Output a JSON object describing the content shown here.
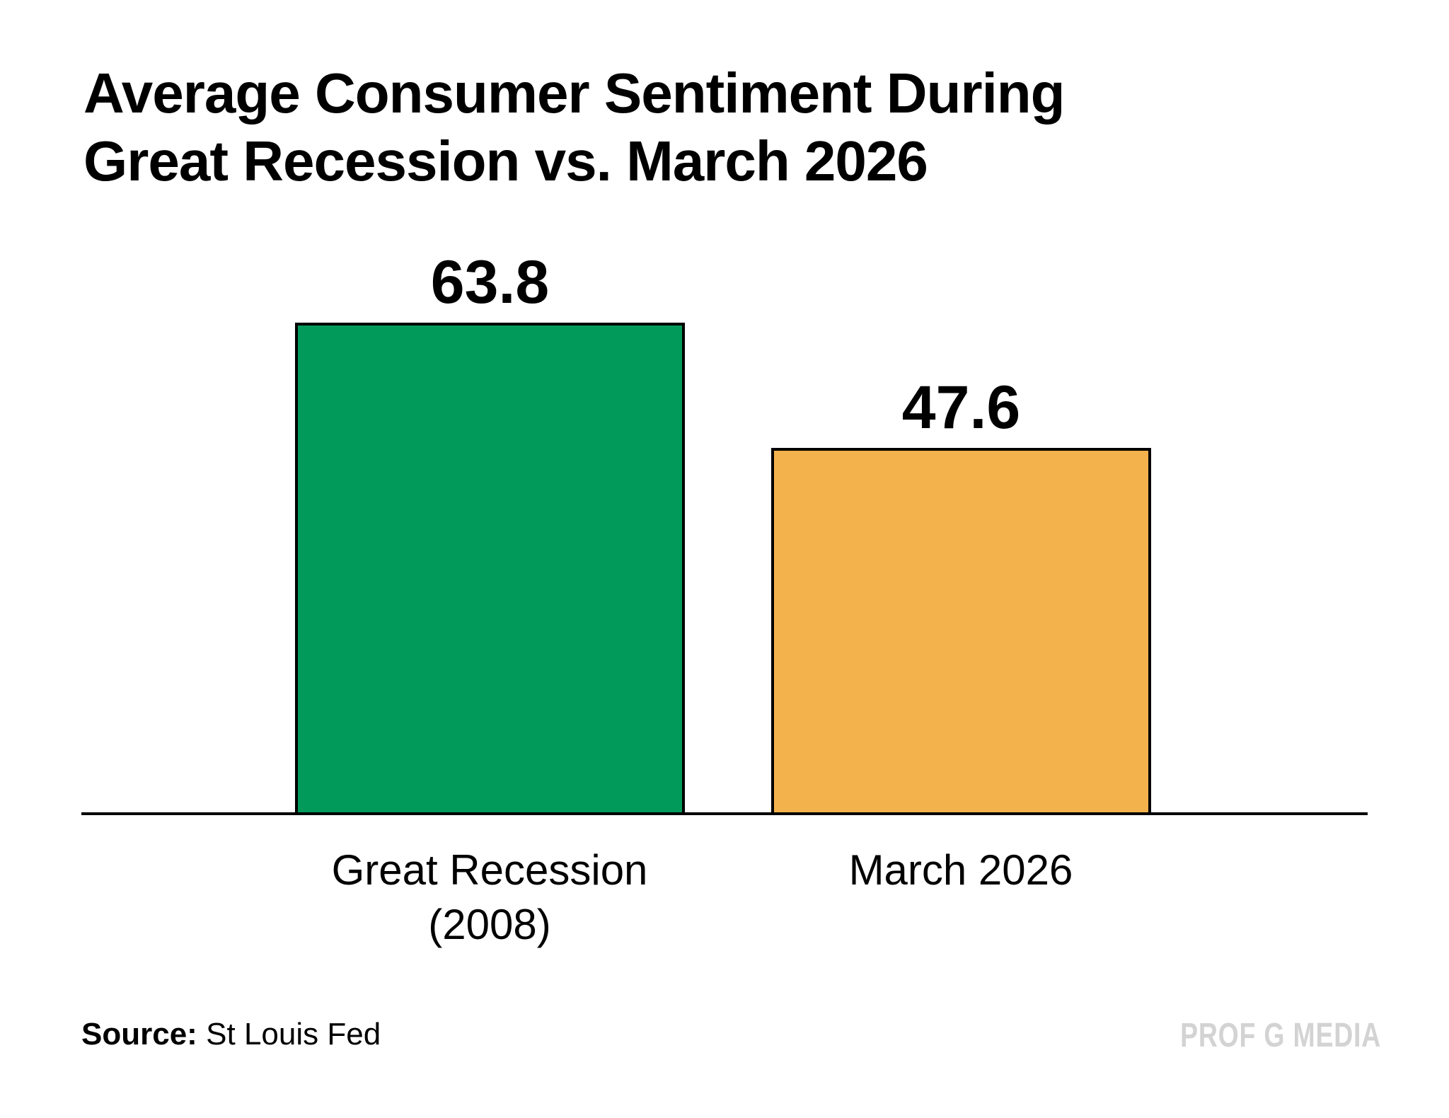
{
  "page": {
    "title_line1": "Average Consumer Sentiment During",
    "title_line2": "Great Recession vs. March 2026",
    "source_label": "Source:",
    "source_value": "St Louis Fed",
    "watermark": "PROF G MEDIA"
  },
  "chart_data": {
    "type": "bar",
    "title": "Average Consumer Sentiment During Great Recession vs. March 2026",
    "categories": [
      "Great Recession (2008)",
      "March 2026"
    ],
    "values": [
      63.8,
      47.6
    ],
    "colors": [
      "#029a5b",
      "#f4b24c"
    ],
    "bar_border_color": "#000000",
    "value_label_color": "#000000",
    "xlabel": "",
    "ylabel": "",
    "ylim": [
      0,
      63.8
    ],
    "grid": false,
    "legend": false,
    "axis_color": "#000000",
    "source": "St Louis Fed",
    "watermark": "PROF G MEDIA"
  }
}
